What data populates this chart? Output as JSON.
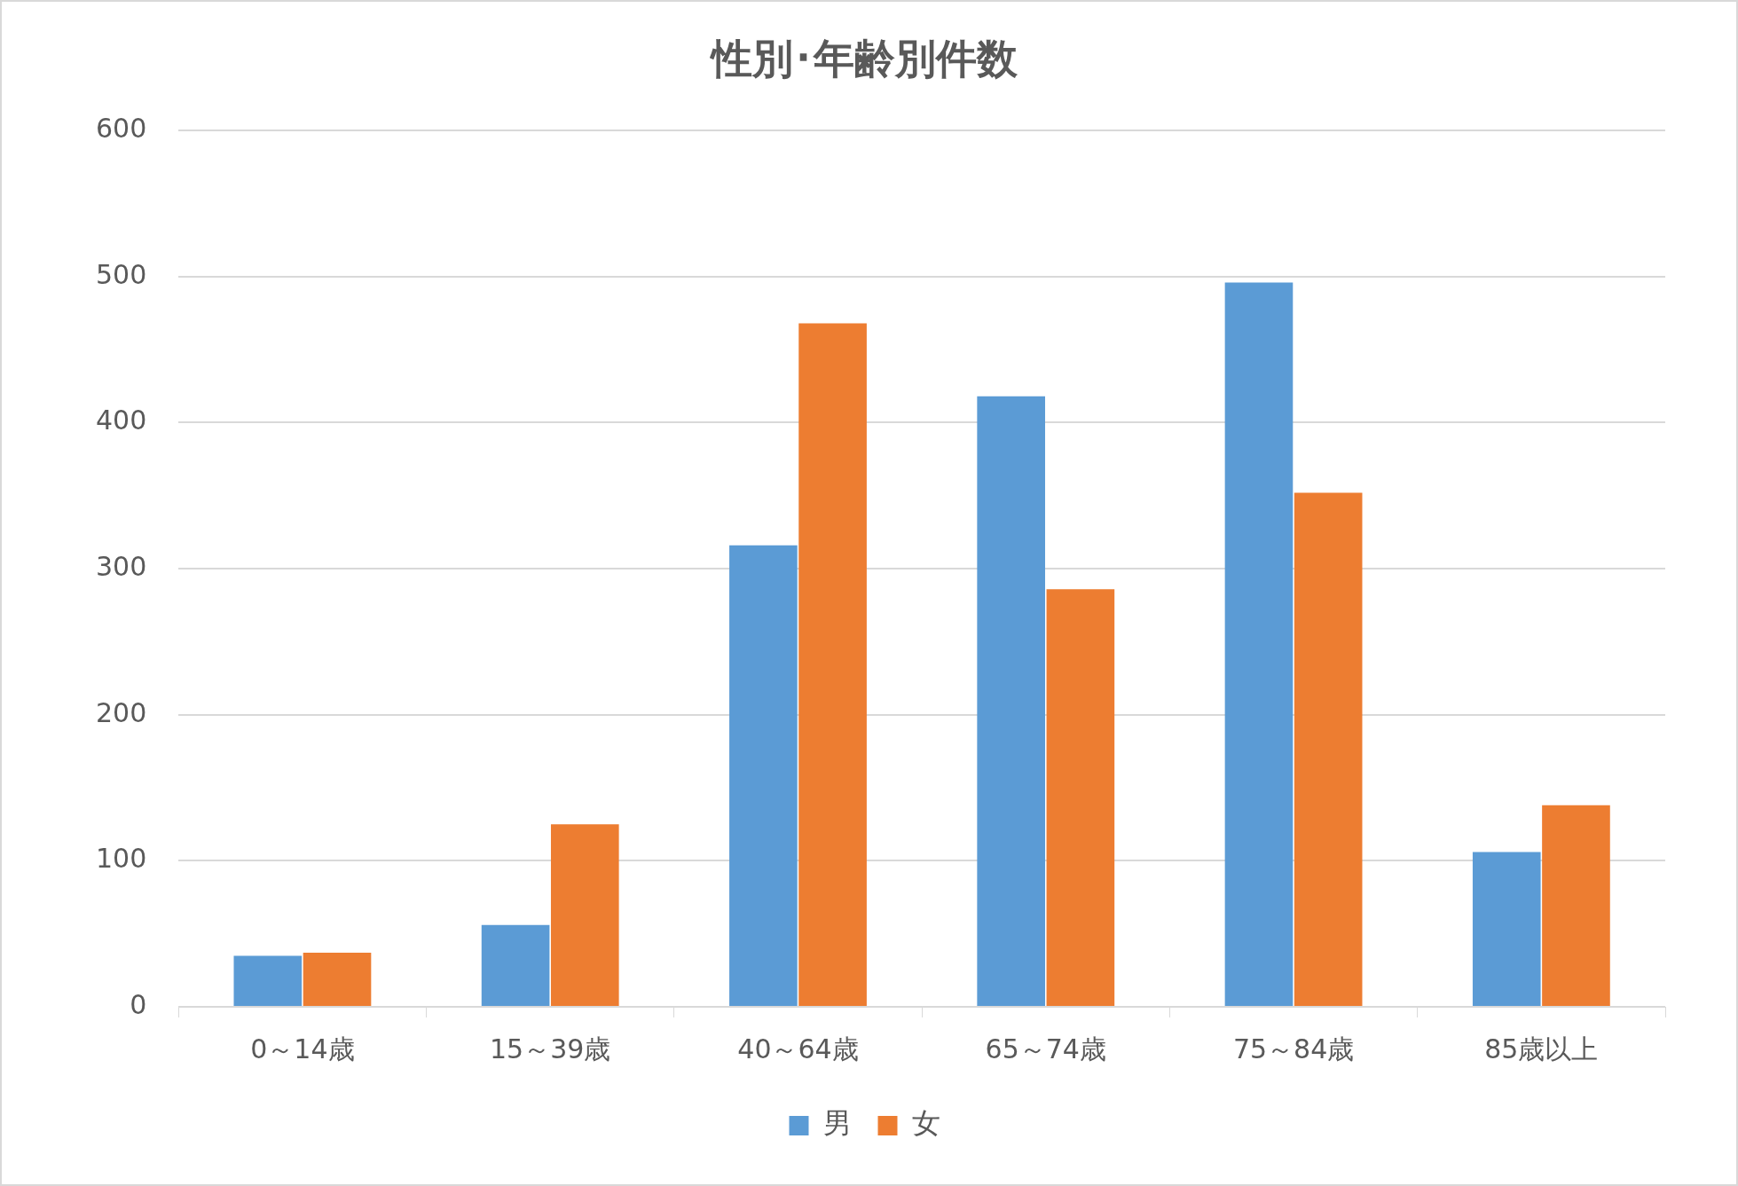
{
  "chart_data": {
    "type": "bar",
    "title": "性別･年齢別件数",
    "categories": [
      "0～14歳",
      "15～39歳",
      "40～64歳",
      "65～74歳",
      "75～84歳",
      "85歳以上"
    ],
    "series": [
      {
        "name": "男",
        "color": "#5b9bd5",
        "values": [
          35,
          56,
          316,
          418,
          496,
          106
        ]
      },
      {
        "name": "女",
        "color": "#ed7d31",
        "values": [
          37,
          125,
          468,
          286,
          352,
          138
        ]
      }
    ],
    "ylim": [
      0,
      600
    ],
    "yticks": [
      0,
      100,
      200,
      300,
      400,
      500,
      600
    ],
    "grid": "y",
    "legend": "bottom"
  }
}
